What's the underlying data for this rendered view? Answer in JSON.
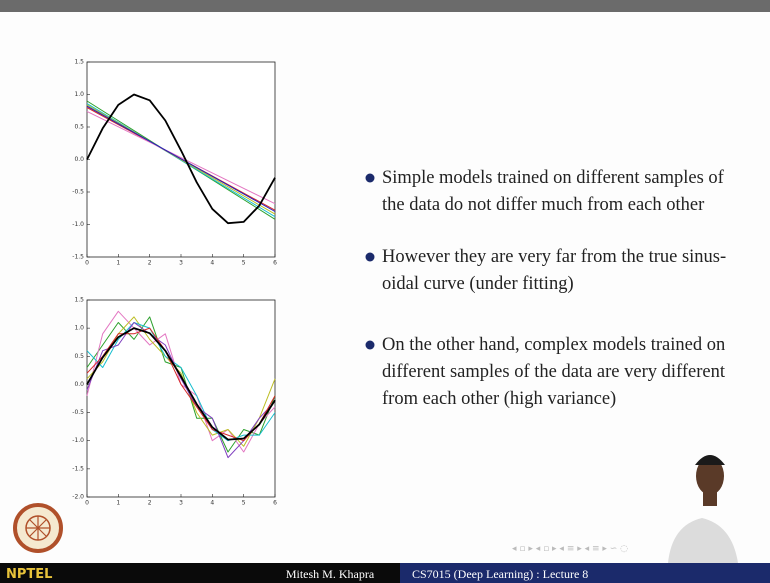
{
  "plots": [
    {
      "xlim": [
        0,
        6
      ],
      "ylim": [
        -1.5,
        1.5
      ],
      "xticks": [
        0,
        1,
        2,
        3,
        4,
        5,
        6
      ],
      "yticks": [
        {
          "value": 1.5,
          "label": "1.5"
        },
        {
          "value": 1.0,
          "label": "1.0"
        },
        {
          "value": 0.5,
          "label": "0.5"
        },
        {
          "value": 0.0,
          "label": "0.0"
        },
        {
          "value": -0.5,
          "label": "-0.5"
        },
        {
          "value": -1.0,
          "label": "-1.0"
        },
        {
          "value": -1.5,
          "label": "-1.5"
        }
      ],
      "series": [
        {
          "color": "#2ca02c",
          "x": [
            0,
            6
          ],
          "values": [
            0.9,
            -0.92
          ]
        },
        {
          "color": "#17becf",
          "x": [
            0,
            6
          ],
          "values": [
            0.86,
            -0.88
          ]
        },
        {
          "color": "#bcbd22",
          "x": [
            0,
            6
          ],
          "values": [
            0.84,
            -0.84
          ]
        },
        {
          "color": "#d62728",
          "x": [
            0,
            6
          ],
          "values": [
            0.8,
            -0.78
          ]
        },
        {
          "color": "#e377c2",
          "x": [
            0,
            6
          ],
          "values": [
            0.74,
            -0.68
          ]
        },
        {
          "color": "#1f1fbf",
          "x": [
            0,
            6
          ],
          "values": [
            0.82,
            -0.8
          ]
        },
        {
          "color": "#000000",
          "x": [
            0,
            0.5,
            1,
            1.5,
            2,
            2.5,
            3,
            3.5,
            4,
            4.5,
            5,
            5.5,
            6
          ],
          "values": [
            0,
            0.48,
            0.84,
            1.0,
            0.91,
            0.6,
            0.14,
            -0.35,
            -0.76,
            -0.98,
            -0.96,
            -0.71,
            -0.28
          ]
        }
      ]
    },
    {
      "xlim": [
        0,
        6
      ],
      "ylim": [
        -2.0,
        1.5
      ],
      "xticks": [
        0,
        1,
        2,
        3,
        4,
        5,
        6
      ],
      "yticks": [
        {
          "value": 1.5,
          "label": "1.5"
        },
        {
          "value": 1.0,
          "label": "1.0"
        },
        {
          "value": 0.5,
          "label": "0.5"
        },
        {
          "value": 0.0,
          "label": "0.0"
        },
        {
          "value": -0.5,
          "label": "-0.5"
        },
        {
          "value": -1.0,
          "label": "-1.0"
        },
        {
          "value": -1.5,
          "label": "-1.5"
        },
        {
          "value": -2.0,
          "label": "-2.0"
        }
      ],
      "series": [
        {
          "color": "#2ca02c",
          "x": [
            0,
            0.5,
            1,
            1.5,
            2,
            2.5,
            3,
            3.5,
            4,
            4.5,
            5,
            5.5,
            6
          ],
          "values": [
            0.3,
            0.7,
            1.1,
            0.8,
            1.2,
            0.4,
            0.3,
            -0.6,
            -0.6,
            -1.2,
            -0.8,
            -0.9,
            -0.2
          ]
        },
        {
          "color": "#e377c2",
          "x": [
            0,
            0.5,
            1,
            1.5,
            2,
            2.5,
            3,
            3.5,
            4,
            4.5,
            5,
            5.5,
            6
          ],
          "values": [
            -0.2,
            0.9,
            1.3,
            1.0,
            0.7,
            0.9,
            0.0,
            -0.2,
            -1.0,
            -0.8,
            -1.2,
            -0.7,
            -0.4
          ]
        },
        {
          "color": "#bcbd22",
          "x": [
            0,
            0.5,
            1,
            1.5,
            2,
            2.5,
            3,
            3.5,
            4,
            4.5,
            5,
            5.5,
            6
          ],
          "values": [
            0.1,
            0.4,
            0.9,
            1.2,
            0.8,
            0.5,
            0.2,
            -0.5,
            -0.9,
            -0.8,
            -1.1,
            -0.6,
            0.1
          ]
        },
        {
          "color": "#17becf",
          "x": [
            0,
            0.5,
            1,
            1.5,
            2,
            2.5,
            3,
            3.5,
            4,
            4.5,
            5,
            5.5,
            6
          ],
          "values": [
            0.6,
            0.3,
            0.8,
            1.1,
            1.0,
            0.5,
            0.3,
            -0.2,
            -0.8,
            -1.0,
            -0.9,
            -0.9,
            -0.5
          ]
        },
        {
          "color": "#7f3fbf",
          "x": [
            0,
            0.5,
            1,
            1.5,
            2,
            2.5,
            3,
            3.5,
            4,
            4.5,
            5,
            5.5,
            6
          ],
          "values": [
            -0.1,
            0.6,
            0.7,
            1.1,
            0.9,
            0.7,
            0.1,
            -0.4,
            -0.6,
            -1.3,
            -1.0,
            -0.6,
            -0.3
          ]
        },
        {
          "color": "#d62728",
          "x": [
            0,
            0.5,
            1,
            1.5,
            2,
            2.5,
            3,
            3.5,
            4,
            4.5,
            5,
            5.5,
            6
          ],
          "values": [
            0.2,
            0.5,
            0.9,
            0.9,
            1.0,
            0.6,
            0.0,
            -0.4,
            -0.8,
            -0.9,
            -1.0,
            -0.7,
            -0.2
          ]
        },
        {
          "color": "#000000",
          "x": [
            0,
            0.5,
            1,
            1.5,
            2,
            2.5,
            3,
            3.5,
            4,
            4.5,
            5,
            5.5,
            6
          ],
          "values": [
            0,
            0.48,
            0.84,
            1.0,
            0.91,
            0.6,
            0.14,
            -0.35,
            -0.76,
            -0.98,
            -0.96,
            -0.71,
            -0.28
          ]
        }
      ]
    }
  ],
  "bullets": [
    {
      "lines": [
        "Simple models trained on different samples of",
        "the data do not differ much from each other"
      ]
    },
    {
      "lines": [
        "However they are very far from the true sinus-",
        "oidal curve (under fitting)"
      ]
    },
    {
      "lines": [
        "On the other hand, complex models trained on",
        "different samples of the data are very different",
        "from each other (high variance)"
      ]
    }
  ],
  "footer": {
    "logo_text": "NPTEL",
    "author": "Mitesh M. Khapra",
    "course": "CS7015 (Deep Learning) : Lecture 8"
  }
}
